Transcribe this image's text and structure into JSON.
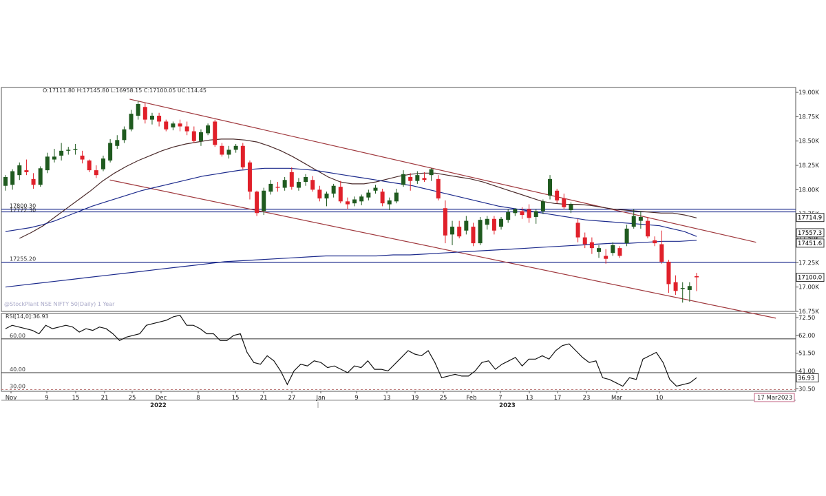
{
  "header": {
    "ohlc_text": "O:17111.80  H:17145.80  L:16958.15  C:17100.05  UC:114.45",
    "watermark": "@StockPlant NSE NIFTY 50(Daily) 1 Year"
  },
  "colors": {
    "up": "#1f5a1f",
    "down": "#e0202a",
    "trend": "#a0393e",
    "ma_short": "#4a2a2a",
    "ma_long": "#1c2a8c",
    "level": "#1c2a8c"
  },
  "chart_data": [
    {
      "type": "candlestick",
      "panel": "price",
      "y_tick_labels": [
        "19.00K",
        "18.75K",
        "18.50K",
        "18.25K",
        "18.00K",
        "17.75K",
        "17.50K",
        "17.25K",
        "17.00K",
        "16.75K"
      ],
      "ylim": [
        16750,
        19050
      ],
      "x_tick_labels": [
        "Nov",
        "9",
        "15",
        "21",
        "25",
        "Dec",
        "8",
        "15",
        "21",
        "27",
        "Jan",
        "9",
        "13",
        "19",
        "25",
        "Feb",
        "7",
        "13",
        "17",
        "23",
        "Mar",
        "10"
      ],
      "year_labels": [
        "2022",
        "2023"
      ],
      "date_label": "17 Mar2023",
      "horizontal_levels": [
        {
          "value": 17800.3,
          "label": "17800.30"
        },
        {
          "value": 17772.3,
          "label": "17772.30"
        },
        {
          "value": 17255.2,
          "label": "17255.20"
        }
      ],
      "value_boxes": [
        {
          "value": 17714.9,
          "label": "17714.9"
        },
        {
          "value": 17557.3,
          "label": "17557.3"
        },
        {
          "value": 17451.6,
          "label": "17451.6"
        },
        {
          "value": 17100.0,
          "label": "17100.0"
        }
      ],
      "trendlines": [
        {
          "name": "upper",
          "from": [
            0.16,
            18930
          ],
          "to": [
            0.95,
            17460
          ]
        },
        {
          "name": "lower",
          "from": [
            0.135,
            18100
          ],
          "to": [
            0.975,
            16680
          ]
        }
      ],
      "candles": [
        [
          18040,
          18150,
          17990,
          18130
        ],
        [
          18050,
          18210,
          18000,
          18190
        ],
        [
          18150,
          18280,
          18100,
          18250
        ],
        [
          18200,
          18310,
          18150,
          18180
        ],
        [
          18110,
          18170,
          18010,
          18050
        ],
        [
          18050,
          18240,
          18030,
          18220
        ],
        [
          18200,
          18380,
          18170,
          18340
        ],
        [
          18310,
          18420,
          18280,
          18340
        ],
        [
          18350,
          18480,
          18300,
          18400
        ],
        [
          18400,
          18440,
          18360,
          18410
        ],
        [
          18410,
          18470,
          18360,
          18420
        ],
        [
          18350,
          18400,
          18270,
          18310
        ],
        [
          18300,
          18310,
          18180,
          18200
        ],
        [
          18200,
          18250,
          18120,
          18150
        ],
        [
          18210,
          18350,
          18190,
          18320
        ],
        [
          18300,
          18520,
          18280,
          18480
        ],
        [
          18450,
          18560,
          18420,
          18510
        ],
        [
          18510,
          18650,
          18480,
          18620
        ],
        [
          18620,
          18820,
          18600,
          18780
        ],
        [
          18760,
          18910,
          18720,
          18880
        ],
        [
          18850,
          18890,
          18680,
          18720
        ],
        [
          18720,
          18790,
          18670,
          18760
        ],
        [
          18760,
          18790,
          18650,
          18700
        ],
        [
          18700,
          18720,
          18600,
          18620
        ],
        [
          18640,
          18700,
          18610,
          18680
        ],
        [
          18680,
          18720,
          18600,
          18650
        ],
        [
          18650,
          18700,
          18560,
          18600
        ],
        [
          18600,
          18650,
          18480,
          18500
        ],
        [
          18500,
          18620,
          18450,
          18590
        ],
        [
          18580,
          18680,
          18560,
          18660
        ],
        [
          18700,
          18720,
          18440,
          18460
        ],
        [
          18450,
          18480,
          18340,
          18360
        ],
        [
          18360,
          18450,
          18320,
          18410
        ],
        [
          18410,
          18470,
          18380,
          18450
        ],
        [
          18450,
          18480,
          18210,
          18230
        ],
        [
          18280,
          18300,
          17900,
          17980
        ],
        [
          17980,
          17990,
          17730,
          17760
        ],
        [
          17780,
          18020,
          17740,
          17990
        ],
        [
          17980,
          18100,
          17950,
          18060
        ],
        [
          18030,
          18080,
          17980,
          18020
        ],
        [
          18020,
          18130,
          17990,
          18100
        ],
        [
          18180,
          18230,
          18000,
          18030
        ],
        [
          18020,
          18120,
          17990,
          18080
        ],
        [
          18080,
          18160,
          18040,
          18130
        ],
        [
          18100,
          18140,
          17980,
          18000
        ],
        [
          18000,
          18040,
          17880,
          17910
        ],
        [
          17910,
          17980,
          17830,
          17960
        ],
        [
          17960,
          18060,
          17920,
          18040
        ],
        [
          18030,
          18090,
          17860,
          17880
        ],
        [
          17880,
          17920,
          17800,
          17850
        ],
        [
          17860,
          17930,
          17830,
          17900
        ],
        [
          17880,
          17950,
          17840,
          17930
        ],
        [
          17920,
          18000,
          17890,
          17970
        ],
        [
          17990,
          18050,
          17960,
          18020
        ],
        [
          17980,
          18010,
          17830,
          17860
        ],
        [
          17850,
          17920,
          17790,
          17890
        ],
        [
          17880,
          18010,
          17860,
          17970
        ],
        [
          18050,
          18200,
          18030,
          18160
        ],
        [
          18130,
          18170,
          17990,
          18090
        ],
        [
          18090,
          18190,
          18060,
          18150
        ],
        [
          18120,
          18180,
          18080,
          18100
        ],
        [
          18150,
          18220,
          18090,
          18210
        ],
        [
          18110,
          18150,
          17890,
          17910
        ],
        [
          17810,
          17890,
          17450,
          17530
        ],
        [
          17540,
          17680,
          17430,
          17620
        ],
        [
          17620,
          17680,
          17500,
          17520
        ],
        [
          17580,
          17730,
          17540,
          17680
        ],
        [
          17620,
          17660,
          17420,
          17450
        ],
        [
          17450,
          17720,
          17430,
          17690
        ],
        [
          17640,
          17730,
          17590,
          17700
        ],
        [
          17700,
          17730,
          17540,
          17580
        ],
        [
          17620,
          17720,
          17590,
          17700
        ],
        [
          17690,
          17800,
          17660,
          17770
        ],
        [
          17760,
          17810,
          17730,
          17800
        ],
        [
          17780,
          17820,
          17700,
          17740
        ],
        [
          17800,
          17850,
          17660,
          17710
        ],
        [
          17720,
          17800,
          17650,
          17780
        ],
        [
          17780,
          17900,
          17750,
          17880
        ],
        [
          17940,
          18150,
          17900,
          18110
        ],
        [
          17990,
          18010,
          17860,
          17890
        ],
        [
          17910,
          17960,
          17800,
          17820
        ],
        [
          17790,
          17870,
          17760,
          17850
        ],
        [
          17660,
          17700,
          17460,
          17510
        ],
        [
          17510,
          17560,
          17400,
          17440
        ],
        [
          17460,
          17510,
          17340,
          17400
        ],
        [
          17360,
          17430,
          17300,
          17400
        ],
        [
          17320,
          17390,
          17240,
          17290
        ],
        [
          17350,
          17460,
          17320,
          17430
        ],
        [
          17400,
          17420,
          17300,
          17320
        ],
        [
          17450,
          17640,
          17420,
          17600
        ],
        [
          17620,
          17800,
          17600,
          17730
        ],
        [
          17680,
          17780,
          17600,
          17720
        ],
        [
          17680,
          17720,
          17500,
          17520
        ],
        [
          17480,
          17520,
          17420,
          17450
        ],
        [
          17440,
          17580,
          17240,
          17260
        ],
        [
          17260,
          17280,
          16940,
          17030
        ],
        [
          17050,
          17120,
          16920,
          16960
        ],
        [
          16980,
          17050,
          16840,
          16990
        ],
        [
          16970,
          17050,
          16850,
          17010
        ],
        [
          17111.8,
          17145.8,
          16958.15,
          17100.05
        ]
      ],
      "moving_averages": [
        {
          "name": "MA-short",
          "values": [
            17500,
            17560,
            17630,
            17720,
            17810,
            17900,
            17990,
            18090,
            18170,
            18240,
            18300,
            18350,
            18400,
            18440,
            18470,
            18490,
            18510,
            18520,
            18520,
            18510,
            18490,
            18450,
            18400,
            18340,
            18270,
            18200,
            18130,
            18080,
            18060,
            18060,
            18080,
            18110,
            18140,
            18160,
            18170,
            18170,
            18150,
            18130,
            18110,
            18080,
            18040,
            18000,
            17960,
            17920,
            17880,
            17860,
            17850,
            17850,
            17840,
            17820,
            17800,
            17790,
            17780,
            17770,
            17760,
            17760,
            17740,
            17710
          ]
        },
        {
          "name": "MA-medium",
          "values": [
            17570,
            17590,
            17610,
            17640,
            17680,
            17730,
            17780,
            17830,
            17870,
            17910,
            17950,
            17990,
            18020,
            18050,
            18080,
            18110,
            18140,
            18160,
            18180,
            18200,
            18210,
            18220,
            18220,
            18220,
            18210,
            18200,
            18180,
            18160,
            18140,
            18120,
            18100,
            18080,
            18060,
            18040,
            18010,
            17980,
            17950,
            17920,
            17890,
            17860,
            17830,
            17810,
            17790,
            17770,
            17750,
            17730,
            17710,
            17690,
            17680,
            17670,
            17660,
            17650,
            17640,
            17630,
            17600,
            17570,
            17520
          ]
        },
        {
          "name": "MA-long",
          "values": [
            17000,
            17020,
            17040,
            17060,
            17080,
            17100,
            17120,
            17140,
            17160,
            17180,
            17200,
            17220,
            17240,
            17260,
            17270,
            17280,
            17290,
            17300,
            17310,
            17320,
            17320,
            17320,
            17320,
            17330,
            17330,
            17340,
            17350,
            17360,
            17370,
            17380,
            17390,
            17400,
            17410,
            17420,
            17430,
            17440,
            17450,
            17450,
            17460,
            17470,
            17470,
            17480
          ]
        }
      ]
    },
    {
      "type": "line",
      "panel": "rsi",
      "legend_text": "RSI[14,0]:36.93",
      "y_tick_labels": [
        "72.50",
        "62.00",
        "51.50",
        "41.00",
        "30.50"
      ],
      "ylim": [
        29,
        75
      ],
      "reference_levels": [
        {
          "value": 60,
          "label": "60.00"
        },
        {
          "value": 40,
          "label": "40.00"
        },
        {
          "value": 30,
          "label": "30.00"
        }
      ],
      "value_box": {
        "value": 36.93,
        "label": "36.93"
      },
      "values": [
        66,
        68,
        67,
        66,
        65,
        63,
        68,
        66,
        67,
        68,
        67,
        64,
        66,
        65,
        67,
        66,
        63,
        59,
        61,
        62,
        63,
        68,
        69,
        70,
        71,
        73,
        74,
        68,
        68,
        66,
        63,
        63,
        59,
        59,
        62,
        63,
        52,
        46,
        45,
        50,
        47,
        41,
        33,
        41,
        45,
        44,
        47,
        46,
        43,
        44,
        42,
        40,
        44,
        43,
        47,
        42,
        42,
        41,
        45,
        49,
        53,
        51,
        50,
        53,
        46,
        37,
        38,
        39,
        38,
        38,
        41,
        46,
        47,
        42,
        45,
        47,
        49,
        44,
        48,
        48,
        50,
        48,
        53,
        56,
        57,
        53,
        49,
        46,
        47,
        37,
        36,
        34,
        32,
        37,
        36,
        48,
        50,
        52,
        46,
        36,
        32,
        33,
        34,
        37
      ]
    }
  ]
}
